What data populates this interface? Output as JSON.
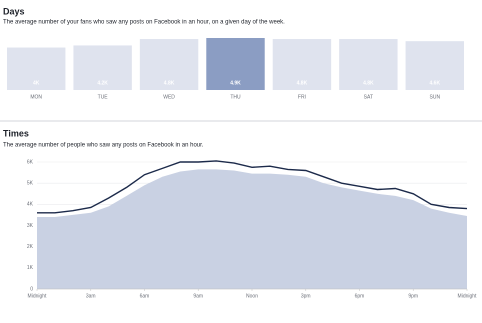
{
  "chart_data": [
    {
      "type": "bar",
      "title": "Days",
      "subtitle": "The average number of your fans who saw any posts on Facebook in an hour, on a given day of the week.",
      "categories": [
        "MON",
        "TUE",
        "WED",
        "THU",
        "FRI",
        "SAT",
        "SUN"
      ],
      "values": [
        4000,
        4200,
        4800,
        4900,
        4800,
        4800,
        4600
      ],
      "value_labels": [
        "4K",
        "4.2K",
        "4.8K",
        "4.9K",
        "4.8K",
        "4.8K",
        "4.6K"
      ],
      "color": "#dfe3ee",
      "highlight_color": "#8b9dc3",
      "highlight_index": 3
    },
    {
      "type": "line",
      "title": "Times",
      "subtitle": "The average number of people who saw any posts on Facebook in an hour.",
      "x": [
        0,
        1,
        2,
        3,
        4,
        5,
        6,
        7,
        8,
        9,
        10,
        11,
        12,
        13,
        14,
        15,
        16,
        17,
        18,
        19,
        20,
        21,
        22,
        23,
        24
      ],
      "series": [
        {
          "color": "#c9d1e3",
          "fill": true,
          "values": [
            3400,
            3400,
            3500,
            3600,
            3900,
            4400,
            4900,
            5300,
            5550,
            5650,
            5650,
            5600,
            5450,
            5450,
            5400,
            5300,
            5000,
            4800,
            4650,
            4500,
            4400,
            4200,
            3800,
            3600,
            3450
          ]
        },
        {
          "color": "#1c2a4a",
          "fill": false,
          "values": [
            3600,
            3600,
            3700,
            3850,
            4300,
            4800,
            5400,
            5700,
            6000,
            6000,
            6050,
            5950,
            5750,
            5800,
            5650,
            5600,
            5300,
            5000,
            4850,
            4700,
            4750,
            4500,
            4000,
            3850,
            3800
          ]
        }
      ],
      "xlim": [
        0,
        24
      ],
      "xticks": [
        {
          "value": 0,
          "label": "Midnight"
        },
        {
          "value": 3,
          "label": "3am"
        },
        {
          "value": 6,
          "label": "6am"
        },
        {
          "value": 9,
          "label": "9am"
        },
        {
          "value": 12,
          "label": "Noon"
        },
        {
          "value": 15,
          "label": "3pm"
        },
        {
          "value": 18,
          "label": "6pm"
        },
        {
          "value": 21,
          "label": "9pm"
        },
        {
          "value": 24,
          "label": "Midnight"
        }
      ],
      "ylim": [
        0,
        6000
      ],
      "yticks": [
        0,
        {
          "value": 1000,
          "label": "1K"
        },
        {
          "value": 2000,
          "label": "2K"
        },
        {
          "value": 3000,
          "label": "3K"
        },
        {
          "value": 4000,
          "label": "4K"
        },
        {
          "value": 5000,
          "label": "5K"
        },
        {
          "value": 6000,
          "label": "6K"
        }
      ],
      "grid": true
    }
  ]
}
